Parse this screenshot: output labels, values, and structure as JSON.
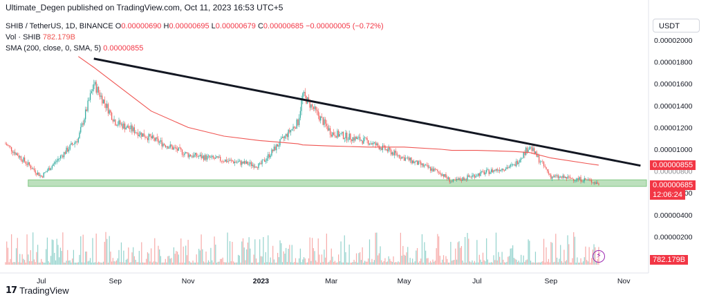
{
  "header": {
    "caption": "Ultimate_Degen published on TradingView.com, Oct 11, 2023 16:53 UTC+5"
  },
  "legend": {
    "symbol": "SHIB / TetherUS, 1D, BINANCE",
    "o_label": "O",
    "o": "0.00000690",
    "h_label": "H",
    "h": "0.00000695",
    "l_label": "L",
    "l": "0.00000679",
    "c_label": "C",
    "c": "0.00000685",
    "change": "−0.00000005 (−0.72%)",
    "vol_label": "Vol · SHIB",
    "vol": "782.179B",
    "sma_label": "SMA (200, close, 0, SMA, 5)",
    "sma": "0.00000855"
  },
  "currency_button": "USDT",
  "price_axis": [
    "0.00002000",
    "0.00001800",
    "0.00001600",
    "0.00001400",
    "0.00001200",
    "0.00001000",
    "0.00000600",
    "0.00000400",
    "0.00000200",
    "00"
  ],
  "partial_label": "0.00000800",
  "tags": {
    "sma": "0.00000855",
    "price": "0.00000685",
    "countdown": "12:06:24",
    "volume": "782.179B"
  },
  "time_axis": [
    "Jul",
    "Sep",
    "Nov",
    "2023",
    "Mar",
    "May",
    "Jul",
    "Sep",
    "Nov"
  ],
  "brand": "TradingView",
  "colors": {
    "up": "#26a69a",
    "down": "#ef5350",
    "sma": "#ef5350",
    "trendline": "#131722",
    "zone": "#a5d6a7",
    "tag_red": "#f23645"
  },
  "chart_data": {
    "type": "line",
    "title": "SHIB / TetherUS, 1D, BINANCE",
    "ylabel": "USDT",
    "x": [
      "2022-06-01",
      "2022-07-01",
      "2022-08-01",
      "2022-08-14",
      "2022-09-01",
      "2022-10-01",
      "2022-11-01",
      "2022-12-01",
      "2022-12-31",
      "2023-02-01",
      "2023-02-05",
      "2023-03-01",
      "2023-04-01",
      "2023-05-01",
      "2023-06-01",
      "2023-06-10",
      "2023-07-01",
      "2023-08-01",
      "2023-08-14",
      "2023-09-01",
      "2023-10-01",
      "2023-10-11"
    ],
    "series": [
      {
        "name": "SHIB/USDT close",
        "values": [
          1.05e-05,
          7.5e-06,
          1.1e-05,
          1.6e-05,
          1.25e-05,
          1.1e-05,
          9.5e-06,
          9e-06,
          8.5e-06,
          1.25e-05,
          1.5e-05,
          1.15e-05,
          1.07e-05,
          9.2e-06,
          7.8e-06,
          7e-06,
          7.7e-06,
          8.5e-06,
          1.03e-05,
          7.5e-06,
          7.2e-06,
          6.85e-06
        ]
      },
      {
        "name": "SMA (200, close, 0, SMA, 5)",
        "values": [
          null,
          null,
          1.85e-05,
          1.75e-05,
          1.6e-05,
          1.35e-05,
          1.2e-05,
          1.12e-05,
          1.08e-05,
          1.05e-05,
          1.04e-05,
          1.03e-05,
          1.02e-05,
          1.02e-05,
          1e-05,
          9.9e-06,
          9.9e-06,
          9.8e-06,
          9.7e-06,
          9.2e-06,
          8.7e-06,
          8.55e-06
        ]
      }
    ],
    "trendline": {
      "from": [
        "2022-08-14",
        1.83e-05
      ],
      "to": [
        "2023-11-15",
        8.5e-06
      ]
    },
    "support_zone": [
      6.6e-06,
      7.2e-06
    ],
    "ylim": [
      0.0,
      2.02e-05
    ],
    "grid": false,
    "legend": "top-left"
  }
}
